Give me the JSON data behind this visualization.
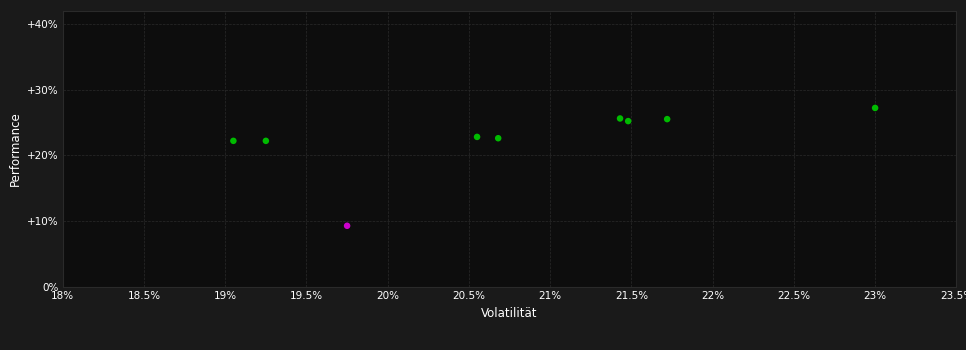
{
  "background_color": "#1a1a1a",
  "plot_bg_color": "#0d0d0d",
  "grid_color": "#2a2a2a",
  "text_color": "#ffffff",
  "xlabel": "Volatilität",
  "ylabel": "Performance",
  "xlim": [
    0.18,
    0.235
  ],
  "ylim": [
    0.0,
    0.42
  ],
  "xticks": [
    0.18,
    0.185,
    0.19,
    0.195,
    0.2,
    0.205,
    0.21,
    0.215,
    0.22,
    0.225,
    0.23,
    0.235
  ],
  "yticks": [
    0.0,
    0.1,
    0.2,
    0.3,
    0.4
  ],
  "ytick_labels": [
    "0%",
    "+10%",
    "+20%",
    "+30%",
    "+40%"
  ],
  "xtick_labels": [
    "18%",
    "18.5%",
    "19%",
    "19.5%",
    "20%",
    "20.5%",
    "21%",
    "21.5%",
    "22%",
    "22.5%",
    "23%",
    "23.5%"
  ],
  "green_points": [
    [
      0.1905,
      0.222
    ],
    [
      0.1925,
      0.222
    ],
    [
      0.2055,
      0.228
    ],
    [
      0.2068,
      0.226
    ],
    [
      0.2143,
      0.256
    ],
    [
      0.2148,
      0.252
    ],
    [
      0.2172,
      0.255
    ],
    [
      0.23,
      0.272
    ]
  ],
  "magenta_points": [
    [
      0.1975,
      0.093
    ]
  ],
  "marker_size": 22,
  "green_color": "#00bb00",
  "magenta_color": "#cc00cc"
}
